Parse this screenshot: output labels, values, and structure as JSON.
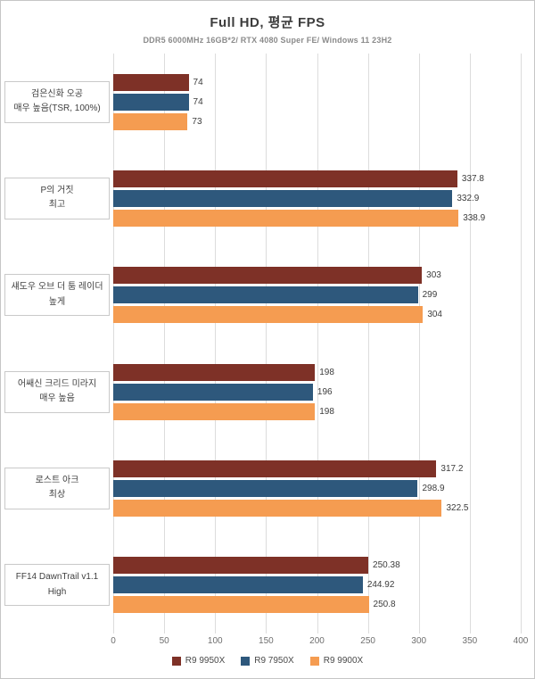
{
  "header": {
    "title": "Full HD, 평균 FPS",
    "subtitle": "DDR5 6000MHz 16GB*2/ RTX 4080 Super FE/ Windows 11 23H2"
  },
  "chart_data": {
    "type": "bar",
    "orientation": "horizontal",
    "title": "Full HD, 평균 FPS",
    "subtitle": "DDR5 6000MHz 16GB*2/ RTX 4080 Super FE/ Windows 11 23H2",
    "categories": [
      [
        "검은신화 오공",
        "매우 높음(TSR, 100%)"
      ],
      [
        "P의 거짓",
        "최고"
      ],
      [
        "섀도우 오브 더 툼 레이더",
        "높게"
      ],
      [
        "어쌔신 크리드 미라지",
        "매우 높음"
      ],
      [
        "로스트 아크",
        "최상"
      ],
      [
        "FF14 DawnTrail v1.1",
        "High"
      ]
    ],
    "series": [
      {
        "name": "R9 9950X",
        "color": "#7E3127",
        "values": [
          74,
          337.8,
          303,
          198,
          317.2,
          250.38
        ]
      },
      {
        "name": "R9 7950X",
        "color": "#2E587C",
        "values": [
          74,
          332.9,
          299,
          196,
          298.9,
          244.92
        ]
      },
      {
        "name": "R9 9900X",
        "color": "#F59C51",
        "values": [
          73,
          338.9,
          304,
          198,
          322.5,
          250.8
        ]
      }
    ],
    "xlabel": "",
    "ylabel": "",
    "xlim": [
      0,
      400
    ],
    "xticks": [
      0,
      50,
      100,
      150,
      200,
      250,
      300,
      350,
      400
    ],
    "grid": true,
    "legend_position": "bottom"
  }
}
